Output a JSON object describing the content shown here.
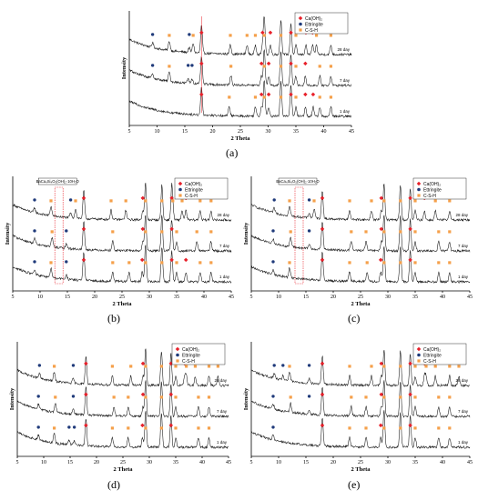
{
  "colors": {
    "caoh2": "#e8202a",
    "ettringite": "#1f3a7a",
    "csh": "#f5a04a",
    "trace": "#111111",
    "box": "#e8202a"
  },
  "chart_data": [
    {
      "type": "line",
      "caption": "(a)",
      "xlabel": "2 Theta",
      "ylabel": "Intensity",
      "xlim": [
        5,
        45
      ],
      "xticks": [
        5,
        10,
        15,
        20,
        25,
        30,
        35,
        40,
        45
      ],
      "legend": {
        "position": "top-right",
        "entries": [
          "Ca(OH)₂",
          "Ettringite",
          "C-S-H"
        ]
      },
      "series": [
        {
          "name": "28 day",
          "offset": 2.0,
          "markers": {
            "caoh2": [
              18.0,
              29.0,
              30.4,
              34.1,
              36.8,
              38.0
            ],
            "ettringite": [
              9.2,
              15.8
            ],
            "csh": [
              12.2,
              16.5,
              23.2,
              26.2,
              27.7,
              29.3,
              32.3,
              35.0,
              38.7,
              41.3
            ]
          }
        },
        {
          "name": "7 day",
          "offset": 1.0,
          "markers": {
            "caoh2": [
              18.0,
              28.8,
              30.1,
              34.1,
              36.7
            ],
            "ettringite": [
              9.2,
              15.6,
              16.3
            ],
            "csh": [
              12.2,
              23.3,
              29.3,
              32.3,
              35.0,
              39.3,
              41.3
            ]
          }
        },
        {
          "name": "1 day",
          "offset": 0.0,
          "markers": {
            "caoh2": [
              18.0,
              28.8,
              30.1,
              34.1,
              36.7,
              38.1
            ],
            "ettringite": [],
            "csh": [
              23.0,
              27.7,
              29.3,
              32.3,
              35.0,
              39.3,
              41.3
            ]
          }
        }
      ]
    },
    {
      "type": "line",
      "caption": "(b)",
      "xlabel": "2 Theta",
      "ylabel": "Intensity",
      "xlim": [
        5,
        45
      ],
      "xticks": [
        5,
        10,
        15,
        20,
        25,
        30,
        35,
        40,
        45
      ],
      "legend": {
        "position": "top-right",
        "entries": [
          "Ca(OH)₂",
          "Ettringite",
          "C-S-H"
        ]
      },
      "annotation": "BaCa₄Si₄O₅(OH)₂·10H₂O",
      "box_range": [
        12.7,
        14.2
      ],
      "series": [
        {
          "name": "28 day",
          "offset": 2.0,
          "markers": {
            "caoh2": [
              18.0,
              28.8,
              34.1,
              36.7
            ],
            "ettringite": [
              9.0,
              15.6
            ],
            "csh": [
              12.0,
              16.5,
              23.0,
              25.7,
              29.3,
              32.3,
              34.3,
              36.0,
              39.3,
              41.3
            ]
          }
        },
        {
          "name": "7 day",
          "offset": 1.0,
          "markers": {
            "caoh2": [
              18.0,
              28.8,
              34.1
            ],
            "ettringite": [
              9.0,
              14.8
            ],
            "csh": [
              12.2,
              23.3,
              29.3,
              32.3,
              35.0,
              38.7,
              41.3
            ]
          }
        },
        {
          "name": "1 day",
          "offset": 0.0,
          "markers": {
            "caoh2": [
              18.0,
              28.7,
              34.1,
              36.7
            ],
            "ettringite": [
              9.0,
              14.8
            ],
            "csh": [
              12.0,
              23.3,
              26.3,
              29.3,
              32.3,
              35.0,
              39.3,
              41.3
            ]
          }
        }
      ]
    },
    {
      "type": "line",
      "caption": "(c)",
      "xlabel": "2 Theta",
      "ylabel": "Intensity",
      "xlim": [
        5,
        45
      ],
      "xticks": [
        5,
        10,
        15,
        20,
        25,
        30,
        35,
        40,
        45
      ],
      "legend": {
        "position": "top-right",
        "entries": [
          "Ca(OH)₂",
          "Ettringite",
          "C-S-H"
        ]
      },
      "annotation": "BaCa₄Si₄O₅(OH)₂·10H₂O",
      "box_range": [
        13.0,
        14.5
      ],
      "series": [
        {
          "name": "28 day",
          "offset": 2.0,
          "markers": {
            "caoh2": [
              18.0,
              28.8,
              34.1,
              36.7
            ],
            "ettringite": [
              9.2,
              15.6
            ],
            "csh": [
              12.0,
              16.5,
              23.0,
              27.0,
              29.3,
              32.3,
              35.0,
              38.7,
              41.3
            ]
          }
        },
        {
          "name": "7 day",
          "offset": 1.0,
          "markers": {
            "caoh2": [
              18.0,
              28.8,
              34.1
            ],
            "ettringite": [
              9.0,
              15.6
            ],
            "csh": [
              12.2,
              23.3,
              26.0,
              29.3,
              32.3,
              35.0,
              39.3,
              41.3
            ]
          }
        },
        {
          "name": "1 day",
          "offset": 0.0,
          "markers": {
            "caoh2": [
              18.0,
              28.7,
              34.1
            ],
            "ettringite": [
              9.0
            ],
            "csh": [
              12.0,
              23.0,
              26.2,
              29.3,
              32.3,
              35.0,
              39.3,
              41.3
            ]
          }
        }
      ]
    },
    {
      "type": "line",
      "caption": "(d)",
      "xlabel": "2 Theta",
      "ylabel": "Intensity",
      "xlim": [
        5,
        45
      ],
      "xticks": [
        5,
        10,
        15,
        20,
        25,
        30,
        35,
        40,
        45
      ],
      "legend": {
        "position": "top-right",
        "entries": [
          "Ca(OH)₂",
          "Ettringite",
          "C-S-H"
        ]
      },
      "series": [
        {
          "name": "28 day",
          "offset": 2.0,
          "markers": {
            "caoh2": [
              18.0,
              28.8,
              34.1,
              36.7
            ],
            "ettringite": [
              9.2,
              15.6
            ],
            "csh": [
              12.0,
              23.0,
              26.5,
              29.3,
              32.3,
              35.0,
              37.0,
              38.7,
              41.3,
              43.0
            ]
          }
        },
        {
          "name": "7 day",
          "offset": 1.0,
          "markers": {
            "caoh2": [
              18.0,
              28.8,
              34.1
            ],
            "ettringite": [
              9.0,
              15.6
            ],
            "csh": [
              12.2,
              23.3,
              26.0,
              29.3,
              32.3,
              35.0,
              39.3,
              41.3
            ]
          }
        },
        {
          "name": "1 day",
          "offset": 0.0,
          "markers": {
            "caoh2": [
              18.0,
              28.7,
              34.1
            ],
            "ettringite": [
              9.0,
              14.8,
              15.8
            ],
            "csh": [
              12.0,
              23.0,
              26.0,
              29.3,
              32.3,
              35.0,
              39.3,
              41.3
            ]
          }
        }
      ]
    },
    {
      "type": "line",
      "caption": "(e)",
      "xlabel": "2 Theta",
      "ylabel": "Intensity",
      "xlim": [
        5,
        45
      ],
      "xticks": [
        5,
        10,
        15,
        20,
        25,
        30,
        35,
        40,
        45
      ],
      "legend": {
        "position": "top-right",
        "entries": [
          "Ca(OH)₂",
          "Ettringite",
          "C-S-H"
        ]
      },
      "series": [
        {
          "name": "28 day",
          "offset": 2.0,
          "markers": {
            "caoh2": [
              18.0,
              28.8,
              34.1,
              36.7
            ],
            "ettringite": [
              9.2,
              10.8,
              15.6
            ],
            "csh": [
              12.0,
              23.0,
              27.0,
              29.3,
              32.3,
              35.0,
              37.0,
              38.7,
              41.3,
              43.0
            ]
          }
        },
        {
          "name": "7 day",
          "offset": 1.0,
          "markers": {
            "caoh2": [
              18.0,
              28.8,
              34.1
            ],
            "ettringite": [
              9.0,
              15.6
            ],
            "csh": [
              12.2,
              23.3,
              26.0,
              29.3,
              32.3,
              35.0,
              39.3,
              41.3
            ]
          }
        },
        {
          "name": "1 day",
          "offset": 0.0,
          "markers": {
            "caoh2": [
              18.0,
              28.7,
              34.1
            ],
            "ettringite": [
              9.0
            ],
            "csh": [
              23.0,
              26.0,
              29.3,
              32.3,
              35.0,
              39.3,
              41.3
            ]
          }
        }
      ]
    }
  ]
}
